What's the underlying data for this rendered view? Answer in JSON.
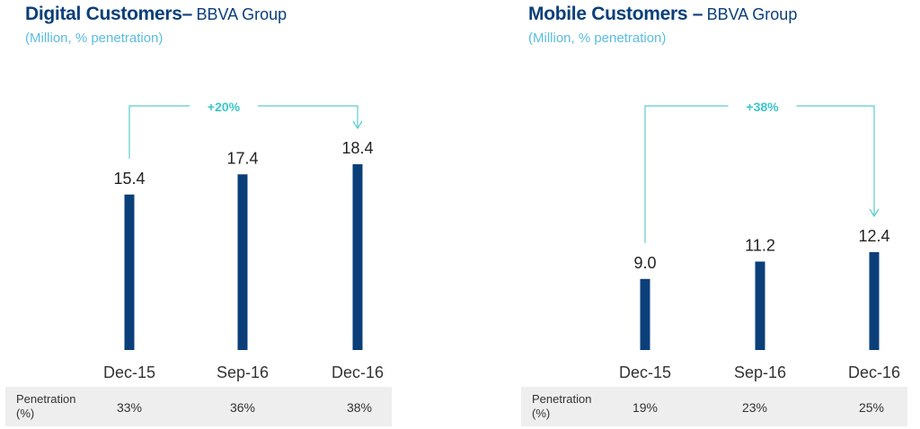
{
  "chart_data": [
    {
      "type": "bar",
      "title": "Digital Customers–",
      "title_suffix": "BBVA Group",
      "subtitle": "(Million, % penetration)",
      "categories": [
        "Dec-15",
        "Sep-16",
        "Dec-16"
      ],
      "values": [
        15.4,
        17.4,
        18.4
      ],
      "value_labels": [
        "15.4",
        "17.4",
        "18.4"
      ],
      "bar_color": "#0b3f7a",
      "growth_label": "+20%",
      "growth_color": "#3cc6c8",
      "penetration_label": "Penetration (%)",
      "penetration": [
        "33%",
        "36%",
        "38%"
      ],
      "grid": false
    },
    {
      "type": "bar",
      "title": "Mobile Customers –",
      "title_suffix": "BBVA Group",
      "subtitle": "(Million, % penetration)",
      "categories": [
        "Dec-15",
        "Sep-16",
        "Dec-16"
      ],
      "values": [
        9.0,
        11.2,
        12.4
      ],
      "value_labels": [
        "9.0",
        "11.2",
        "12.4"
      ],
      "bar_color": "#0b3f7a",
      "growth_label": "+38%",
      "growth_color": "#3cc6c8",
      "penetration_label": "Penetration (%)",
      "penetration": [
        "19%",
        "23%",
        "25%"
      ],
      "grid": false
    }
  ]
}
